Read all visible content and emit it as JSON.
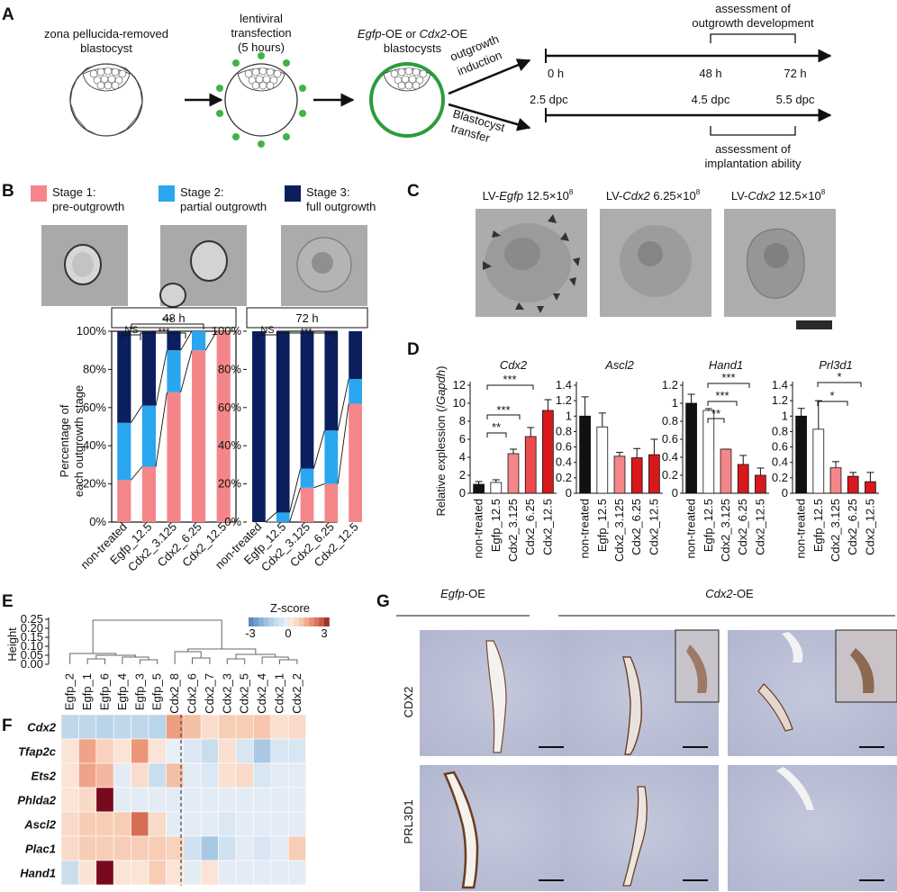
{
  "panels": [
    "A",
    "B",
    "C",
    "D",
    "E",
    "F",
    "G"
  ],
  "panel_a": {
    "steps": [
      "zona pellucida-removed",
      "blastocyst",
      "lentiviral",
      "transfection",
      "(5 hours)",
      "Egfp",
      "-OE or ",
      "Cdx2",
      "-OE",
      "blastocysts"
    ],
    "branches": [
      "outgrowth",
      "induction",
      "Blastocyst",
      "transfer"
    ],
    "top_times": [
      "0 h",
      "48 h",
      "72 h"
    ],
    "bottom_times": [
      "2.5 dpc",
      "4.5 dpc",
      "5.5 dpc"
    ],
    "top_note": [
      "assessment of",
      "outgrowth development"
    ],
    "bottom_note": [
      "assessment of",
      "implantation ability"
    ]
  },
  "panel_b": {
    "legend": [
      {
        "l1": "Stage 1:",
        "l2": "pre-outgrowth",
        "color": "#f4868a"
      },
      {
        "l1": "Stage 2:",
        "l2": "partial outgrowth",
        "color": "#2aa6f0"
      },
      {
        "l1": "Stage 3:",
        "l2": "full outgrowth",
        "color": "#0b1f5e"
      }
    ],
    "ylabel1": "Percentage of",
    "ylabel2": "each outgrowth stage",
    "yticks": [
      "0%",
      "20%",
      "40%",
      "60%",
      "80%",
      "100%"
    ],
    "sig_48": [
      "NS",
      "***",
      "***"
    ],
    "sig_72": [
      "NS",
      "***"
    ]
  },
  "panel_c": {
    "titles": [
      {
        "a": "LV-",
        "b": "Egfp",
        "c": " 12.5×10",
        "d": "8"
      },
      {
        "a": "LV-",
        "b": "Cdx2",
        "c": " 6.25×10",
        "d": "8"
      },
      {
        "a": "LV-",
        "b": "Cdx2",
        "c": " 12.5×10",
        "d": "8"
      }
    ]
  },
  "panel_d": {
    "ylabel": "Relative explession (/",
    "ylabel_it": "Gapdh",
    "ylabel_end": ")",
    "sig": {
      "Cdx2": [
        "**",
        "***",
        "***"
      ],
      "Hand1": [
        "**",
        "***",
        "***"
      ],
      "Prl3d1": [
        "*",
        "*"
      ]
    }
  },
  "panel_e": {
    "ylabel": "Height",
    "yticks": [
      "0.25",
      "0.20",
      "0.15",
      "0.10",
      "0.05",
      "0.00"
    ],
    "zscore_title": "Z-score",
    "zscore_ticks": [
      "-3",
      "0",
      "3"
    ]
  },
  "panel_g": {
    "headers": [
      {
        "it": "Egfp",
        "t": "-OE"
      },
      {
        "it": "Cdx2",
        "t": "-OE"
      }
    ],
    "rows": [
      "CDX2",
      "PRL3D1"
    ]
  },
  "colors": {
    "stage1": "#f4868a",
    "stage2": "#2aa6f0",
    "stage3": "#0b1f5e",
    "dark_red": "#d7191c",
    "light_red": "#f4868a"
  },
  "chart_data": [
    {
      "type": "bar",
      "title": "48 h",
      "categories": [
        "non-treated",
        "Egfp_12.5",
        "Cdx2_3.125",
        "Cdx2_6.25",
        "Cdx2_12.5"
      ],
      "series": [
        {
          "name": "Stage 1: pre-outgrowth",
          "values": [
            22,
            29,
            68,
            90,
            100
          ]
        },
        {
          "name": "Stage 2: partial outgrowth",
          "values": [
            30,
            32,
            22,
            10,
            0
          ]
        },
        {
          "name": "Stage 3: full outgrowth",
          "values": [
            48,
            39,
            10,
            0,
            0
          ]
        }
      ],
      "ylim": [
        0,
        100
      ],
      "ylabel": "Percentage of each outgrowth stage"
    },
    {
      "type": "bar",
      "title": "72 h",
      "categories": [
        "non-treated",
        "Egfp_12.5",
        "Cdx2_3.125",
        "Cdx2_6.25",
        "Cdx2_12.5"
      ],
      "series": [
        {
          "name": "Stage 1: pre-outgrowth",
          "values": [
            0,
            0,
            18,
            20,
            62
          ]
        },
        {
          "name": "Stage 2: partial outgrowth",
          "values": [
            0,
            5,
            10,
            28,
            13
          ]
        },
        {
          "name": "Stage 3: full outgrowth",
          "values": [
            100,
            95,
            72,
            52,
            25
          ]
        }
      ],
      "ylim": [
        0,
        100
      ]
    },
    {
      "type": "bar",
      "title": "Cdx2",
      "categories": [
        "non-treated",
        "Egfp_12.5",
        "Cdx2_3.125",
        "Cdx2_6.25",
        "Cdx2_12.5"
      ],
      "values": [
        1.0,
        1.2,
        4.4,
        6.3,
        9.2
      ],
      "errors": [
        0.3,
        0.3,
        0.5,
        1.0,
        1.2
      ],
      "ylim": [
        0,
        12
      ],
      "yticks": [
        0,
        2,
        4,
        6,
        8,
        10,
        12
      ]
    },
    {
      "type": "bar",
      "title": "Ascl2",
      "categories": [
        "non-treated",
        "Egfp_12.5",
        "Cdx2_3.125",
        "Cdx2_6.25",
        "Cdx2_12.5"
      ],
      "values": [
        1.0,
        0.86,
        0.48,
        0.46,
        0.5
      ],
      "errors": [
        0.25,
        0.18,
        0.05,
        0.12,
        0.2
      ],
      "ylim": [
        0,
        1.4
      ],
      "yticks": [
        0,
        0.2,
        0.4,
        0.6,
        0.8,
        1,
        1.2,
        1.4
      ]
    },
    {
      "type": "bar",
      "title": "Hand1",
      "categories": [
        "non-treated",
        "Egfp_12.5",
        "Cdx2_3.125",
        "Cdx2_6.25",
        "Cdx2_12.5"
      ],
      "values": [
        1.0,
        0.92,
        0.49,
        0.32,
        0.2
      ],
      "errors": [
        0.1,
        0.02,
        0.0,
        0.1,
        0.08
      ],
      "ylim": [
        0,
        1.2
      ],
      "yticks": [
        0,
        0.2,
        0.4,
        0.6,
        0.8,
        1,
        1.2
      ]
    },
    {
      "type": "bar",
      "title": "Prl3d1",
      "categories": [
        "non-treated",
        "Egfp_12.5",
        "Cdx2_3.125",
        "Cdx2_6.25",
        "Cdx2_12.5"
      ],
      "values": [
        1.0,
        0.83,
        0.33,
        0.22,
        0.15
      ],
      "errors": [
        0.1,
        0.37,
        0.08,
        0.05,
        0.12
      ],
      "ylim": [
        0,
        1.4
      ],
      "yticks": [
        0,
        0.2,
        0.4,
        0.6,
        0.8,
        1,
        1.2,
        1.4
      ]
    },
    {
      "type": "heatmap",
      "columns": [
        "Egfp_2",
        "Egfp_1",
        "Egfp_6",
        "Egfp_4",
        "Egfp_3",
        "Egfp_5",
        "Cdx2_8",
        "Cdx2_6",
        "Cdx2_7",
        "Cdx2_3",
        "Cdx2_5",
        "Cdx2_4",
        "Cdx2_1",
        "Cdx2_2"
      ],
      "rows": [
        "Cdx2",
        "Tfap2c",
        "Ets2",
        "Phlda2",
        "Ascl2",
        "Plac1",
        "Hand1"
      ],
      "values": [
        [
          -1.2,
          -1.2,
          -1.3,
          -1.2,
          -1.2,
          -1.3,
          1.6,
          1.1,
          0.5,
          0.9,
          0.9,
          1.0,
          0.4,
          0.6
        ],
        [
          0.3,
          1.5,
          0.8,
          0.3,
          1.7,
          0.3,
          -0.2,
          -0.5,
          -1.0,
          0.4,
          -0.6,
          -1.6,
          -0.6,
          -0.6
        ],
        [
          0.3,
          1.5,
          1.2,
          -0.3,
          0.5,
          -1.0,
          1.1,
          -0.3,
          -0.5,
          0.4,
          0.6,
          -0.6,
          -0.3,
          -0.3
        ],
        [
          0.3,
          0.6,
          3.4,
          -0.3,
          -0.3,
          -0.3,
          -0.3,
          -0.3,
          -0.3,
          -0.3,
          -0.3,
          -0.3,
          -0.3,
          -0.3
        ],
        [
          0.6,
          0.9,
          0.9,
          0.9,
          2.3,
          0.6,
          -0.3,
          -0.3,
          -0.3,
          -0.5,
          -0.3,
          -0.3,
          -0.3,
          -0.3
        ],
        [
          0.6,
          0.9,
          0.9,
          0.9,
          0.9,
          0.9,
          0.8,
          -0.8,
          -1.6,
          -0.8,
          -0.3,
          -0.6,
          -0.3,
          0.9
        ],
        [
          -1.0,
          0.3,
          3.4,
          0.3,
          0.3,
          0.9,
          0.3,
          -0.3,
          0.3,
          -0.3,
          -0.3,
          -0.3,
          -0.3,
          -0.3
        ]
      ],
      "zlim": [
        -3,
        3
      ]
    }
  ]
}
